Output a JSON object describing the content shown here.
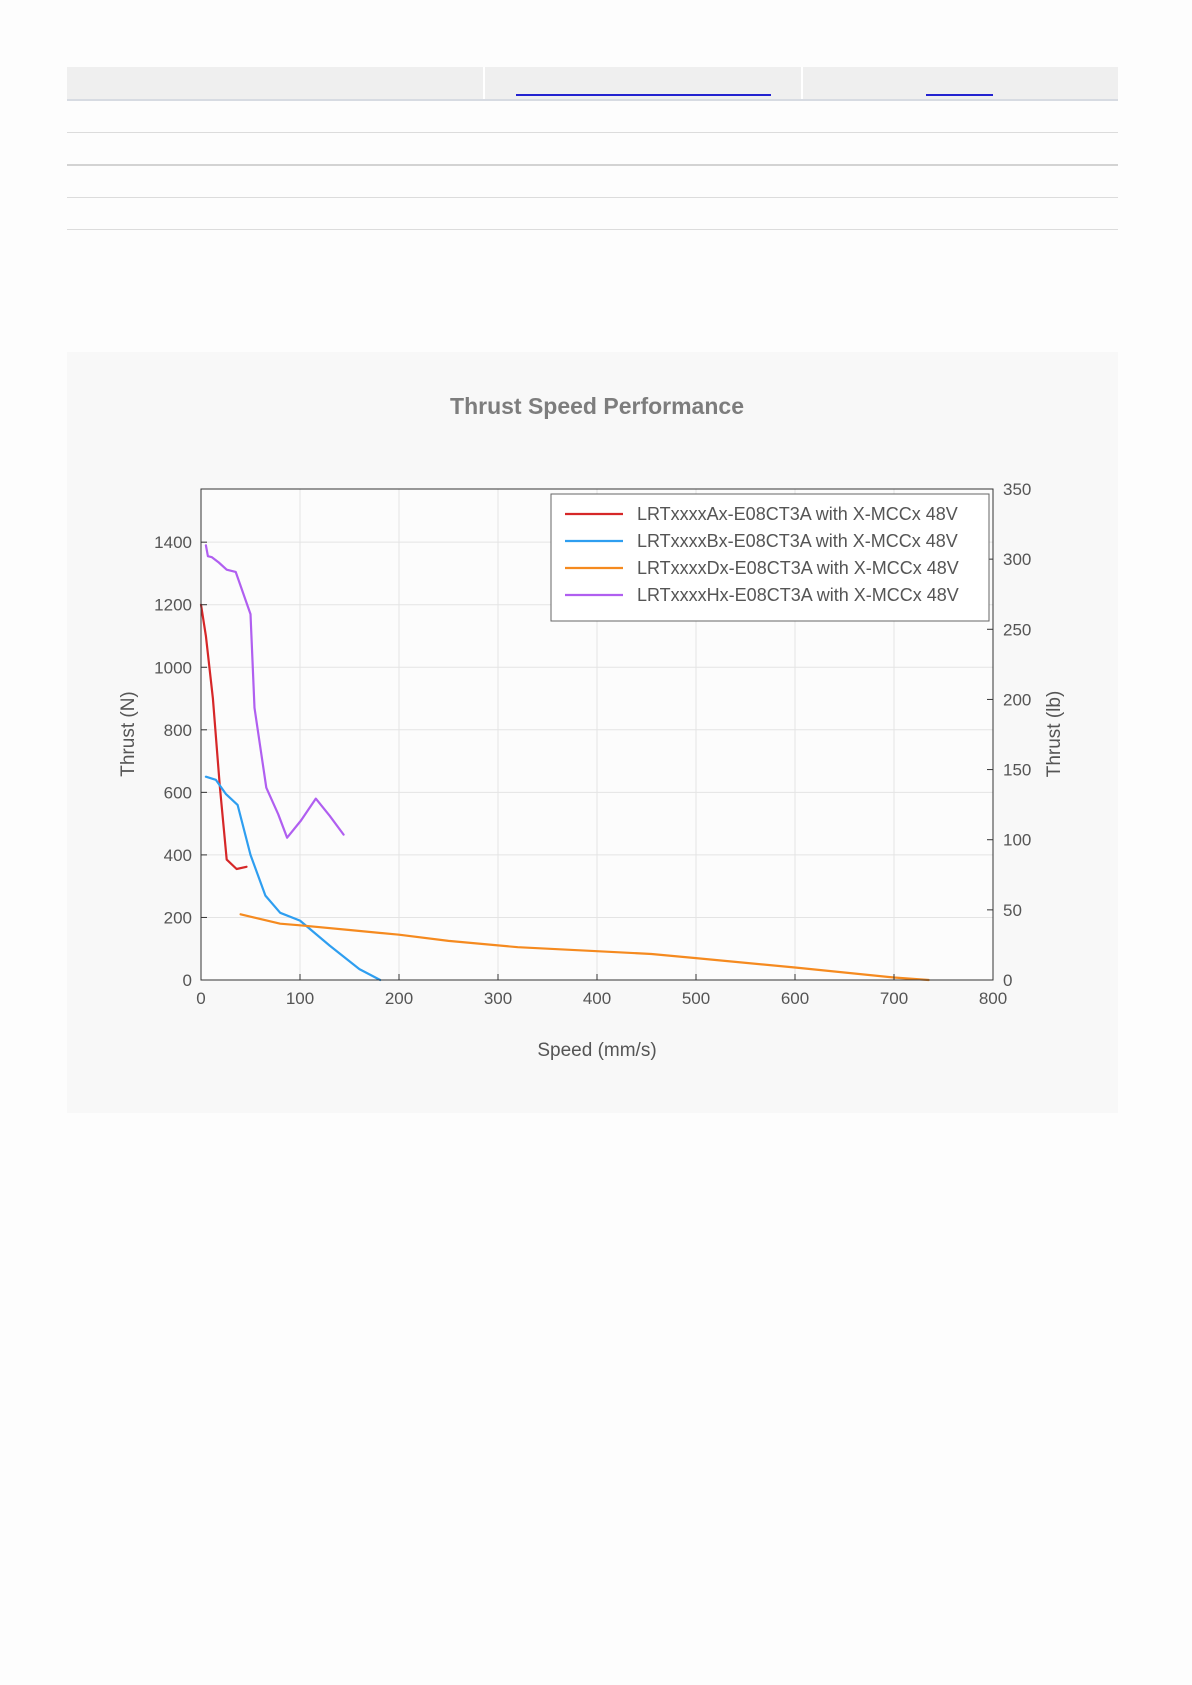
{
  "table": {
    "columns": 3,
    "body_rows": 4
  },
  "chart_data": {
    "type": "line",
    "title": "Thrust Speed Performance",
    "xlabel": "Speed (mm/s)",
    "ylabel": "Thrust (N)",
    "y2label": "Thrust (lb)",
    "xlim": [
      0,
      800
    ],
    "ylim": [
      0,
      1570
    ],
    "y2lim": [
      0,
      350
    ],
    "xticks": [
      0,
      100,
      200,
      300,
      400,
      500,
      600,
      700,
      800
    ],
    "yticks": [
      0,
      200,
      400,
      600,
      800,
      1000,
      1200,
      1400
    ],
    "y2ticks": [
      0,
      50,
      100,
      150,
      200,
      250,
      300,
      350
    ],
    "grid": true,
    "legend_position": "top-right",
    "series": [
      {
        "name": "LRTxxxxAx-E08CT3A with X-MCCx 48V",
        "color": "#d62728",
        "x": [
          0,
          5,
          12,
          19,
          26,
          36,
          46
        ],
        "y": [
          1200,
          1100,
          900,
          620,
          385,
          355,
          362
        ]
      },
      {
        "name": "LRTxxxxBx-E08CT3A with X-MCCx 48V",
        "color": "#2e9ef0",
        "x": [
          5,
          15,
          25,
          37,
          50,
          65,
          80,
          100,
          130,
          160,
          181
        ],
        "y": [
          650,
          640,
          595,
          560,
          400,
          270,
          215,
          190,
          110,
          35,
          0
        ]
      },
      {
        "name": "LRTxxxxDx-E08CT3A with X-MCCx 48V",
        "color": "#f58a1f",
        "x": [
          40,
          80,
          100,
          150,
          200,
          250,
          320,
          400,
          455,
          500,
          600,
          700,
          735
        ],
        "y": [
          210,
          180,
          175,
          160,
          145,
          125,
          105,
          92,
          83,
          70,
          40,
          8,
          0
        ]
      },
      {
        "name": "LRTxxxxHx-E08CT3A with X-MCCx 48V",
        "color": "#b05ff0",
        "x": [
          5,
          7,
          11,
          18,
          26,
          35,
          50,
          54,
          66,
          78,
          87,
          101,
          116,
          130,
          144
        ],
        "y": [
          1390,
          1355,
          1352,
          1335,
          1312,
          1305,
          1170,
          870,
          615,
          530,
          455,
          510,
          580,
          525,
          465
        ]
      }
    ]
  }
}
